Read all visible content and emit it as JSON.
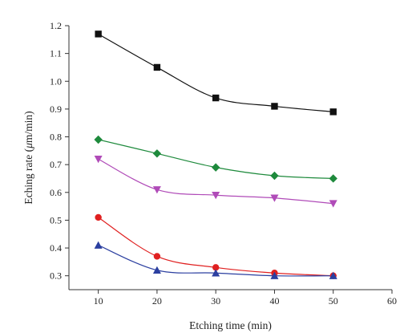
{
  "chart_data": {
    "type": "line",
    "xlabel": "Etching time (min)",
    "ylabel_prefix": "Eching rate (",
    "ylabel_mu": "μ",
    "ylabel_suffix": "m/min)",
    "xlim": [
      5,
      60
    ],
    "ylim": [
      0.25,
      1.2
    ],
    "xticks": [
      10,
      20,
      30,
      40,
      50,
      60
    ],
    "yticks": [
      0.3,
      0.4,
      0.5,
      0.6,
      0.7,
      0.8,
      0.9,
      1.0,
      1.1,
      1.2
    ],
    "xtick_labels": [
      "10",
      "20",
      "30",
      "40",
      "50",
      "60"
    ],
    "ytick_labels": [
      "0.3",
      "0.4",
      "0.5",
      "0.6",
      "0.7",
      "0.8",
      "0.9",
      "1.0",
      "1.1",
      "1.2"
    ],
    "grid": false,
    "x": [
      10,
      20,
      30,
      40,
      50
    ],
    "series": [
      {
        "marker": "square",
        "color": "#111111",
        "values": [
          1.17,
          1.05,
          0.94,
          0.91,
          0.89
        ]
      },
      {
        "marker": "diamond",
        "color": "#1e8a3c",
        "values": [
          0.79,
          0.74,
          0.69,
          0.66,
          0.65
        ]
      },
      {
        "marker": "triangle-down",
        "color": "#b04bb8",
        "values": [
          0.72,
          0.61,
          0.59,
          0.58,
          0.56
        ]
      },
      {
        "marker": "circle",
        "color": "#e02020",
        "values": [
          0.51,
          0.37,
          0.33,
          0.31,
          0.3
        ]
      },
      {
        "marker": "triangle-up",
        "color": "#2b3fa0",
        "values": [
          0.41,
          0.32,
          0.31,
          0.3,
          0.3
        ]
      }
    ]
  }
}
